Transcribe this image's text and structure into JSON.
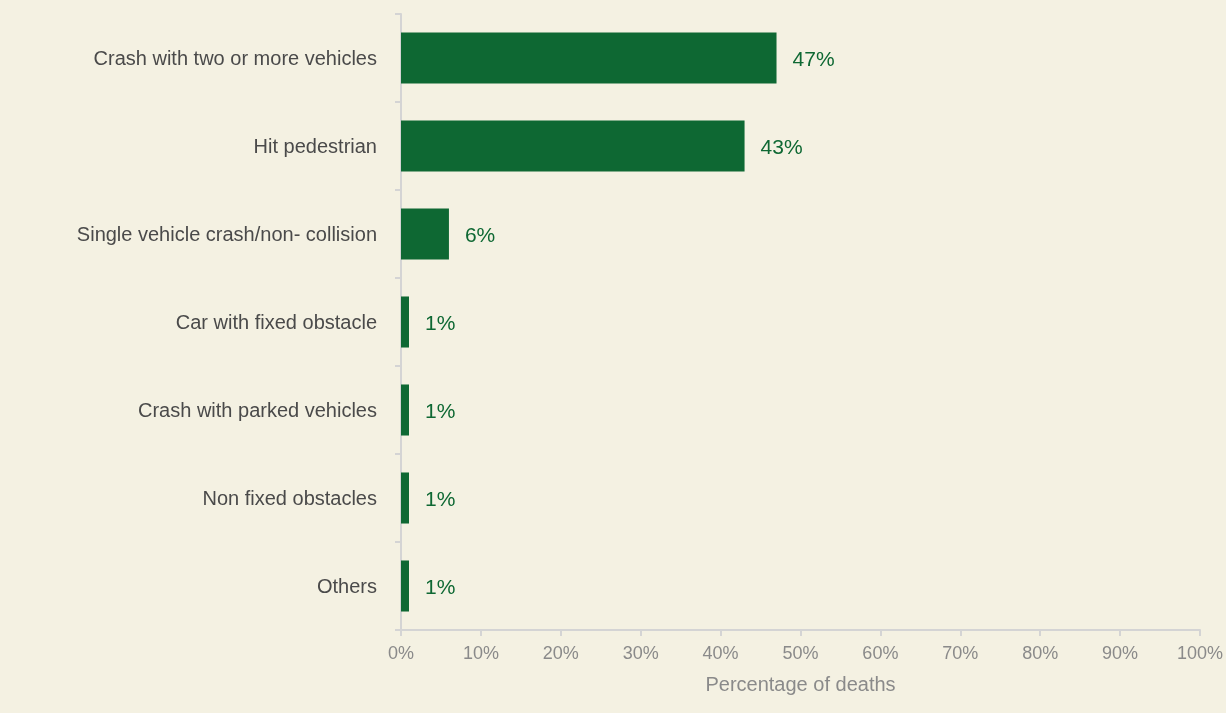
{
  "chart_data": {
    "type": "bar",
    "orientation": "horizontal",
    "xlabel": "Percentage of deaths",
    "categories": [
      "Crash with two or more vehicles",
      "Hit pedestrian",
      "Single vehicle crash/non- collision",
      "Car with fixed obstacle",
      "Crash with parked vehicles",
      "Non fixed obstacles",
      "Others"
    ],
    "values": [
      47,
      43,
      6,
      1,
      1,
      1,
      1
    ],
    "value_labels": [
      "47%",
      "43%",
      "6%",
      "1%",
      "1%",
      "1%",
      "1%"
    ],
    "color": "#0e6833",
    "xlim": [
      0,
      100
    ],
    "xticks": [
      {
        "value": 0,
        "label": "0%"
      },
      {
        "value": 10,
        "label": "10%"
      },
      {
        "value": 20,
        "label": "20%"
      },
      {
        "value": 30,
        "label": "30%"
      },
      {
        "value": 40,
        "label": "40%"
      },
      {
        "value": 50,
        "label": "50%"
      },
      {
        "value": 60,
        "label": "60%"
      },
      {
        "value": 70,
        "label": "70%"
      },
      {
        "value": 80,
        "label": "80%"
      },
      {
        "value": 90,
        "label": "90%"
      },
      {
        "value": 100,
        "label": "100%"
      }
    ],
    "grid": false
  }
}
